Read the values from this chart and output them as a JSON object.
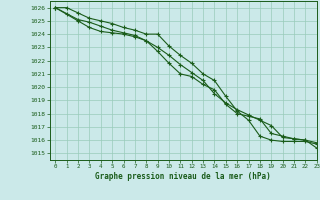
{
  "background_color": "#cbe9e9",
  "grid_color": "#99ccbb",
  "line_color": "#1a5c1a",
  "marker_color": "#1a5c1a",
  "xlabel": "Graphe pression niveau de la mer (hPa)",
  "xlim": [
    -0.5,
    23
  ],
  "ylim": [
    1014.5,
    1026.5
  ],
  "yticks": [
    1015,
    1016,
    1017,
    1018,
    1019,
    1020,
    1021,
    1022,
    1023,
    1024,
    1025,
    1026
  ],
  "xticks": [
    0,
    1,
    2,
    3,
    4,
    5,
    6,
    7,
    8,
    9,
    10,
    11,
    12,
    13,
    14,
    15,
    16,
    17,
    18,
    19,
    20,
    21,
    22,
    23
  ],
  "series1_x": [
    0,
    1,
    2,
    3,
    4,
    5,
    6,
    7,
    8,
    9,
    10,
    11,
    12,
    13,
    14,
    15,
    16,
    17,
    18,
    19,
    20,
    21,
    22,
    23
  ],
  "series1_y": [
    1026.0,
    1026.0,
    1025.6,
    1025.2,
    1025.0,
    1024.8,
    1024.5,
    1024.3,
    1024.0,
    1024.0,
    1023.1,
    1022.4,
    1021.8,
    1021.0,
    1020.5,
    1019.3,
    1018.2,
    1017.5,
    1016.3,
    1016.0,
    1015.9,
    1015.9,
    1015.9,
    1015.7
  ],
  "series2_x": [
    0,
    1,
    2,
    3,
    4,
    5,
    6,
    7,
    8,
    9,
    10,
    11,
    12,
    13,
    14,
    15,
    16,
    17,
    18,
    19,
    20,
    21,
    22,
    23
  ],
  "series2_y": [
    1026.0,
    1025.5,
    1025.0,
    1024.5,
    1024.2,
    1024.1,
    1024.0,
    1023.8,
    1023.5,
    1023.0,
    1022.4,
    1021.7,
    1021.1,
    1020.5,
    1019.5,
    1018.8,
    1018.3,
    1017.9,
    1017.5,
    1017.1,
    1016.2,
    1016.1,
    1016.0,
    1015.8
  ],
  "series3_x": [
    0,
    2,
    3,
    4,
    5,
    6,
    7,
    8,
    9,
    10,
    11,
    12,
    13,
    14,
    15,
    16,
    17,
    18,
    19,
    20,
    21,
    22,
    23
  ],
  "series3_y": [
    1026.0,
    1025.1,
    1024.9,
    1024.6,
    1024.3,
    1024.1,
    1023.9,
    1023.5,
    1022.7,
    1021.8,
    1021.0,
    1020.8,
    1020.2,
    1019.8,
    1018.7,
    1018.0,
    1017.8,
    1017.6,
    1016.5,
    1016.3,
    1016.1,
    1016.0,
    1015.4
  ]
}
